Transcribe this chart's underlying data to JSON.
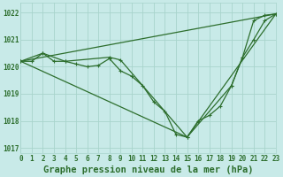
{
  "title": "Graphe pression niveau de la mer (hPa)",
  "bg_color": "#c8eae8",
  "grid_color": "#a8d4cc",
  "line_color": "#2d6e2d",
  "series": {
    "s1": {
      "x": [
        0,
        1,
        2,
        3,
        4,
        5,
        6,
        7,
        8,
        9,
        10,
        11,
        12,
        13,
        14,
        15,
        16,
        17,
        18,
        19,
        20,
        21,
        22,
        23
      ],
      "y": [
        1020.2,
        1020.2,
        1020.5,
        1020.2,
        1020.2,
        1020.1,
        1020.0,
        1020.05,
        1020.3,
        1019.85,
        1019.65,
        1019.3,
        1018.7,
        1018.35,
        1017.5,
        1017.4,
        1018.0,
        1018.2,
        1018.55,
        1019.3,
        1020.35,
        1021.7,
        1021.9,
        1021.95
      ]
    },
    "s2": {
      "x": [
        0,
        23
      ],
      "y": [
        1020.2,
        1021.95
      ]
    },
    "s3": {
      "x": [
        0,
        2,
        4,
        8,
        9,
        15,
        19,
        20,
        21,
        22,
        23
      ],
      "y": [
        1020.2,
        1020.5,
        1020.2,
        1020.35,
        1020.25,
        1017.4,
        1019.3,
        1020.35,
        1021.0,
        1021.7,
        1021.95
      ]
    },
    "s4": {
      "x": [
        0,
        15,
        23
      ],
      "y": [
        1020.2,
        1017.4,
        1021.95
      ]
    }
  },
  "xlim": [
    0,
    23
  ],
  "ylim": [
    1016.8,
    1022.35
  ],
  "yticks": [
    1017,
    1018,
    1019,
    1020,
    1021,
    1022
  ],
  "xticks": [
    0,
    1,
    2,
    3,
    4,
    5,
    6,
    7,
    8,
    9,
    10,
    11,
    12,
    13,
    14,
    15,
    16,
    17,
    18,
    19,
    20,
    21,
    22,
    23
  ],
  "xtick_labels": [
    "0",
    "1",
    "2",
    "3",
    "4",
    "5",
    "6",
    "7",
    "8",
    "9",
    "10",
    "11",
    "12",
    "13",
    "14",
    "15",
    "16",
    "17",
    "18",
    "19",
    "20",
    "21",
    "22",
    "23"
  ],
  "title_fontsize": 7.5,
  "tick_fontsize": 5.5,
  "lw": 0.9,
  "markersize": 3.0
}
